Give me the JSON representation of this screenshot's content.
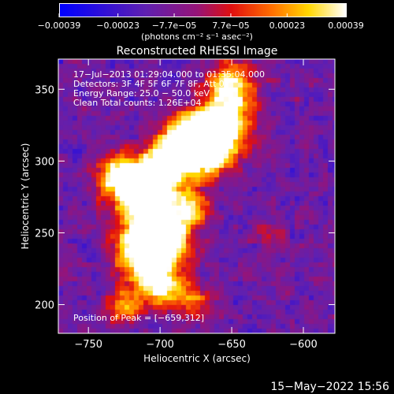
{
  "chart_data": {
    "type": "heatmap",
    "title": "Reconstructed RHESSI Image",
    "xlabel": "Heliocentric X (arcsec)",
    "ylabel": "Heliocentric Y (arcsec)",
    "xlim": [
      -771,
      -578
    ],
    "ylim": [
      180,
      371
    ],
    "x_ticks": [
      -750,
      -700,
      -650,
      -600
    ],
    "x_tick_labels": [
      "−750",
      "−700",
      "−650",
      "−600"
    ],
    "y_ticks": [
      200,
      250,
      300,
      350
    ],
    "y_tick_labels": [
      "200",
      "250",
      "300",
      "350"
    ],
    "colorbar": {
      "colormap": "blue-purple-red-yellow-white",
      "range": [
        -0.00039,
        0.00039
      ],
      "ticks": [
        -0.00039,
        -0.00023,
        -7.7e-05,
        7.7e-05,
        0.00023,
        0.00039
      ],
      "tick_labels": [
        "−0.00039",
        "−0.00023",
        "−7.7e−05",
        "7.7e−05",
        "0.00023",
        "0.00039"
      ],
      "unit": "(photons cm⁻² s⁻¹ asec⁻²)"
    },
    "peak": [
      -659,
      312
    ],
    "annotations": {
      "time_range": "17−Jul−2013 01:29:04.000 to 01:35:04.000",
      "detectors": "Detectors: 3F 4F 5F 6F 7F 8F, Att 0",
      "energy": "Energy Range: 25.0 − 50.0 keV",
      "clean": "Clean     Total counts: 1.26E+04",
      "peak_text": "Position of Peak = [−659,312]"
    },
    "footer_date": "15−May−2022 15:56"
  },
  "colors": {
    "background": "#000000",
    "foreground": "#ffffff"
  }
}
